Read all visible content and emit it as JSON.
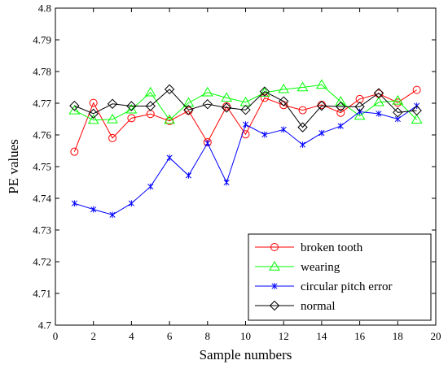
{
  "chart_data": {
    "type": "line",
    "xlabel": "Sample numbers",
    "ylabel": "PE values",
    "xlim": [
      0,
      20
    ],
    "ylim": [
      4.7,
      4.8
    ],
    "xticks": [
      0,
      2,
      4,
      6,
      8,
      10,
      12,
      14,
      16,
      18,
      20
    ],
    "yticks": [
      4.7,
      4.71,
      4.72,
      4.73,
      4.74,
      4.75,
      4.76,
      4.77,
      4.78,
      4.79,
      4.8
    ],
    "ytick_labels": [
      "4.7",
      "4.71",
      "4.72",
      "4.73",
      "4.74",
      "4.75",
      "4.76",
      "4.77",
      "4.78",
      "4.79",
      "4.8"
    ],
    "grid": false,
    "legend_position": "bottom-right",
    "x": [
      1,
      2,
      3,
      4,
      5,
      6,
      7,
      8,
      9,
      10,
      11,
      12,
      13,
      14,
      15,
      16,
      17,
      18,
      19
    ],
    "series": [
      {
        "name": "broken tooth",
        "color": "#ff0000",
        "marker": "circle",
        "values": [
          4.7547,
          4.7701,
          4.759,
          4.7653,
          4.7666,
          4.7644,
          4.7676,
          4.7577,
          4.769,
          4.7602,
          4.7717,
          4.7694,
          4.7678,
          4.7695,
          4.767,
          4.7713,
          4.773,
          4.7702,
          4.7742
        ]
      },
      {
        "name": "wearing",
        "color": "#00ff00",
        "marker": "triangle",
        "values": [
          4.7677,
          4.7647,
          4.7649,
          4.768,
          4.7734,
          4.7647,
          4.7701,
          4.7734,
          4.7717,
          4.7703,
          4.7733,
          4.7744,
          4.775,
          4.7758,
          4.7705,
          4.766,
          4.7703,
          4.7708,
          4.7648
        ]
      },
      {
        "name": "circular pitch error",
        "color": "#0000ff",
        "marker": "star",
        "values": [
          4.7384,
          4.7365,
          4.7348,
          4.7384,
          4.7437,
          4.7528,
          4.7472,
          4.7574,
          4.745,
          4.7633,
          4.7601,
          4.7617,
          4.7569,
          4.7606,
          4.7628,
          4.7673,
          4.7667,
          4.765,
          4.7692
        ]
      },
      {
        "name": "normal",
        "color": "#000000",
        "marker": "diamond",
        "values": [
          4.7692,
          4.7667,
          4.7698,
          4.7691,
          4.7691,
          4.7744,
          4.7679,
          4.7697,
          4.7686,
          4.7679,
          4.7737,
          4.7706,
          4.7624,
          4.7692,
          4.7689,
          4.7689,
          4.7732,
          4.7671,
          4.7677
        ]
      }
    ]
  }
}
